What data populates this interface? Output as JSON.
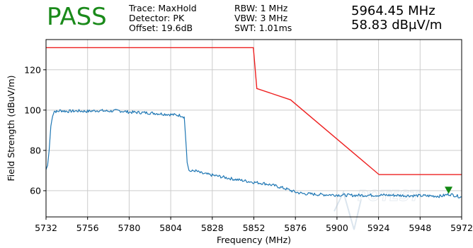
{
  "header": {
    "verdict": "PASS",
    "trace": "Trace: MaxHold",
    "detector": "Detector: PK",
    "offset": "Offset: 19.6dB",
    "rbw": "RBW: 1 MHz",
    "vbw": "VBW: 3 MHz",
    "swt": "SWT: 1.01ms",
    "marker_freq": "5964.45 MHz",
    "marker_level": "58.83 dBµV/m"
  },
  "colors": {
    "verdict": "#1a8a1a",
    "limit": "#ee2020",
    "trace": "#1f77b4",
    "marker": "#118811",
    "grid": "#cccccc"
  },
  "chart_data": {
    "type": "line",
    "xlabel": "Frequency (MHz)",
    "ylabel": "Field Strength (dBuV/m)",
    "xlim": [
      5732,
      5972
    ],
    "ylim": [
      47,
      135
    ],
    "grid": true,
    "xticks": [
      5732,
      5756,
      5780,
      5804,
      5828,
      5852,
      5876,
      5900,
      5924,
      5948,
      5972
    ],
    "yticks": [
      60,
      80,
      100,
      120
    ],
    "limit_line": {
      "x": [
        5732,
        5851.7,
        5853.7,
        5873.2,
        5924.3,
        5972
      ],
      "y": [
        131,
        131,
        110.7,
        105.1,
        68,
        68
      ]
    },
    "trace": {
      "x": [
        5732,
        5732.9,
        5733.8,
        5734.8,
        5735.8,
        5736.8,
        5738.6,
        5740,
        5744,
        5750,
        5756,
        5762,
        5768,
        5774,
        5780,
        5786,
        5792,
        5798,
        5804,
        5808,
        5810,
        5811.8,
        5812.7,
        5813.5,
        5814.5,
        5816,
        5818,
        5822,
        5828,
        5834,
        5840,
        5846,
        5852,
        5858,
        5864,
        5870,
        5876,
        5880,
        5890,
        5900,
        5910,
        5920,
        5930,
        5940,
        5950,
        5960,
        5965,
        5972
      ],
      "y": [
        70.5,
        72.5,
        80,
        92,
        97.5,
        99.5,
        99.2,
        99.8,
        99.4,
        99.6,
        99.4,
        99.8,
        99.5,
        99.7,
        99,
        98.8,
        98.6,
        98.2,
        97.8,
        97.5,
        97.3,
        96.6,
        85,
        74,
        70,
        69.6,
        70,
        68.6,
        67.7,
        66.8,
        65.8,
        65,
        64.2,
        63.6,
        62.5,
        61.1,
        59.3,
        58.6,
        58.1,
        57.9,
        57.7,
        57.8,
        57.8,
        57.6,
        57.5,
        57.3,
        58.3,
        56.8
      ]
    },
    "marker": {
      "x": 5964.45,
      "y": 58.83
    }
  }
}
